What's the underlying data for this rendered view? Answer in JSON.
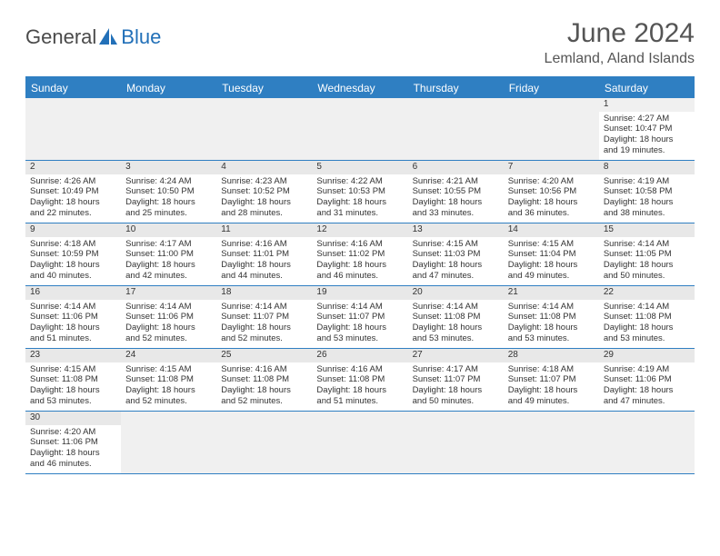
{
  "logo": {
    "text1": "General",
    "text2": "Blue"
  },
  "title": "June 2024",
  "location": "Lemland, Aland Islands",
  "colors": {
    "header_bg": "#2f7fc2",
    "header_text": "#ffffff",
    "border": "#2f7fc2",
    "daynum_bg": "#e8e8e8",
    "empty_bg": "#f0f0f0",
    "body_text": "#333333"
  },
  "day_names": [
    "Sunday",
    "Monday",
    "Tuesday",
    "Wednesday",
    "Thursday",
    "Friday",
    "Saturday"
  ],
  "weeks": [
    [
      null,
      null,
      null,
      null,
      null,
      null,
      {
        "n": "1",
        "sr": "Sunrise: 4:27 AM",
        "ss": "Sunset: 10:47 PM",
        "d1": "Daylight: 18 hours",
        "d2": "and 19 minutes."
      }
    ],
    [
      {
        "n": "2",
        "sr": "Sunrise: 4:26 AM",
        "ss": "Sunset: 10:49 PM",
        "d1": "Daylight: 18 hours",
        "d2": "and 22 minutes."
      },
      {
        "n": "3",
        "sr": "Sunrise: 4:24 AM",
        "ss": "Sunset: 10:50 PM",
        "d1": "Daylight: 18 hours",
        "d2": "and 25 minutes."
      },
      {
        "n": "4",
        "sr": "Sunrise: 4:23 AM",
        "ss": "Sunset: 10:52 PM",
        "d1": "Daylight: 18 hours",
        "d2": "and 28 minutes."
      },
      {
        "n": "5",
        "sr": "Sunrise: 4:22 AM",
        "ss": "Sunset: 10:53 PM",
        "d1": "Daylight: 18 hours",
        "d2": "and 31 minutes."
      },
      {
        "n": "6",
        "sr": "Sunrise: 4:21 AM",
        "ss": "Sunset: 10:55 PM",
        "d1": "Daylight: 18 hours",
        "d2": "and 33 minutes."
      },
      {
        "n": "7",
        "sr": "Sunrise: 4:20 AM",
        "ss": "Sunset: 10:56 PM",
        "d1": "Daylight: 18 hours",
        "d2": "and 36 minutes."
      },
      {
        "n": "8",
        "sr": "Sunrise: 4:19 AM",
        "ss": "Sunset: 10:58 PM",
        "d1": "Daylight: 18 hours",
        "d2": "and 38 minutes."
      }
    ],
    [
      {
        "n": "9",
        "sr": "Sunrise: 4:18 AM",
        "ss": "Sunset: 10:59 PM",
        "d1": "Daylight: 18 hours",
        "d2": "and 40 minutes."
      },
      {
        "n": "10",
        "sr": "Sunrise: 4:17 AM",
        "ss": "Sunset: 11:00 PM",
        "d1": "Daylight: 18 hours",
        "d2": "and 42 minutes."
      },
      {
        "n": "11",
        "sr": "Sunrise: 4:16 AM",
        "ss": "Sunset: 11:01 PM",
        "d1": "Daylight: 18 hours",
        "d2": "and 44 minutes."
      },
      {
        "n": "12",
        "sr": "Sunrise: 4:16 AM",
        "ss": "Sunset: 11:02 PM",
        "d1": "Daylight: 18 hours",
        "d2": "and 46 minutes."
      },
      {
        "n": "13",
        "sr": "Sunrise: 4:15 AM",
        "ss": "Sunset: 11:03 PM",
        "d1": "Daylight: 18 hours",
        "d2": "and 47 minutes."
      },
      {
        "n": "14",
        "sr": "Sunrise: 4:15 AM",
        "ss": "Sunset: 11:04 PM",
        "d1": "Daylight: 18 hours",
        "d2": "and 49 minutes."
      },
      {
        "n": "15",
        "sr": "Sunrise: 4:14 AM",
        "ss": "Sunset: 11:05 PM",
        "d1": "Daylight: 18 hours",
        "d2": "and 50 minutes."
      }
    ],
    [
      {
        "n": "16",
        "sr": "Sunrise: 4:14 AM",
        "ss": "Sunset: 11:06 PM",
        "d1": "Daylight: 18 hours",
        "d2": "and 51 minutes."
      },
      {
        "n": "17",
        "sr": "Sunrise: 4:14 AM",
        "ss": "Sunset: 11:06 PM",
        "d1": "Daylight: 18 hours",
        "d2": "and 52 minutes."
      },
      {
        "n": "18",
        "sr": "Sunrise: 4:14 AM",
        "ss": "Sunset: 11:07 PM",
        "d1": "Daylight: 18 hours",
        "d2": "and 52 minutes."
      },
      {
        "n": "19",
        "sr": "Sunrise: 4:14 AM",
        "ss": "Sunset: 11:07 PM",
        "d1": "Daylight: 18 hours",
        "d2": "and 53 minutes."
      },
      {
        "n": "20",
        "sr": "Sunrise: 4:14 AM",
        "ss": "Sunset: 11:08 PM",
        "d1": "Daylight: 18 hours",
        "d2": "and 53 minutes."
      },
      {
        "n": "21",
        "sr": "Sunrise: 4:14 AM",
        "ss": "Sunset: 11:08 PM",
        "d1": "Daylight: 18 hours",
        "d2": "and 53 minutes."
      },
      {
        "n": "22",
        "sr": "Sunrise: 4:14 AM",
        "ss": "Sunset: 11:08 PM",
        "d1": "Daylight: 18 hours",
        "d2": "and 53 minutes."
      }
    ],
    [
      {
        "n": "23",
        "sr": "Sunrise: 4:15 AM",
        "ss": "Sunset: 11:08 PM",
        "d1": "Daylight: 18 hours",
        "d2": "and 53 minutes."
      },
      {
        "n": "24",
        "sr": "Sunrise: 4:15 AM",
        "ss": "Sunset: 11:08 PM",
        "d1": "Daylight: 18 hours",
        "d2": "and 52 minutes."
      },
      {
        "n": "25",
        "sr": "Sunrise: 4:16 AM",
        "ss": "Sunset: 11:08 PM",
        "d1": "Daylight: 18 hours",
        "d2": "and 52 minutes."
      },
      {
        "n": "26",
        "sr": "Sunrise: 4:16 AM",
        "ss": "Sunset: 11:08 PM",
        "d1": "Daylight: 18 hours",
        "d2": "and 51 minutes."
      },
      {
        "n": "27",
        "sr": "Sunrise: 4:17 AM",
        "ss": "Sunset: 11:07 PM",
        "d1": "Daylight: 18 hours",
        "d2": "and 50 minutes."
      },
      {
        "n": "28",
        "sr": "Sunrise: 4:18 AM",
        "ss": "Sunset: 11:07 PM",
        "d1": "Daylight: 18 hours",
        "d2": "and 49 minutes."
      },
      {
        "n": "29",
        "sr": "Sunrise: 4:19 AM",
        "ss": "Sunset: 11:06 PM",
        "d1": "Daylight: 18 hours",
        "d2": "and 47 minutes."
      }
    ],
    [
      {
        "n": "30",
        "sr": "Sunrise: 4:20 AM",
        "ss": "Sunset: 11:06 PM",
        "d1": "Daylight: 18 hours",
        "d2": "and 46 minutes."
      },
      null,
      null,
      null,
      null,
      null,
      null
    ]
  ]
}
